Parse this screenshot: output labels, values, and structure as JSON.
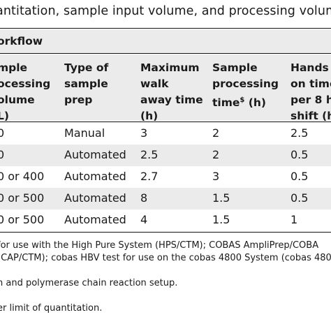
{
  "caption": "antitation, sample input volume, and processing volume",
  "section": "orkflow",
  "columns": [
    {
      "lines": [
        "mple",
        "ocessing",
        "olume",
        "L)"
      ]
    },
    {
      "lines": [
        "Type of",
        "sample",
        "prep"
      ]
    },
    {
      "lines": [
        "Maximum",
        "walk",
        "away time",
        "(h)"
      ]
    },
    {
      "lines": [
        "Sample",
        "processing",
        "time",
        "(h)"
      ],
      "sup": "$"
    },
    {
      "lines": [
        "Hands",
        "on time",
        "per 8 h",
        "shift (h"
      ]
    }
  ],
  "rows": [
    [
      "0",
      "Manual",
      "3",
      "2",
      "2.5"
    ],
    [
      "0",
      "Automated",
      "2.5",
      "2",
      "0.5"
    ],
    [
      "0 or 400",
      "Automated",
      "2.7",
      "3",
      "0.5"
    ],
    [
      "0 or 500",
      "Automated",
      "8",
      "1.5",
      "0.5"
    ],
    [
      "0 or 500",
      "Automated",
      "4",
      "1.5",
      "1"
    ]
  ],
  "footnotes": [
    "for use with the High Pure System (HPS/CTM); COBAS AmpliPrep/COBA",
    "(CAP/CTM); cobas HBV test for use on the cobas 4800 System (cobas 480",
    "n and polymerase chain reaction setup.",
    "er limit of quantitation."
  ]
}
